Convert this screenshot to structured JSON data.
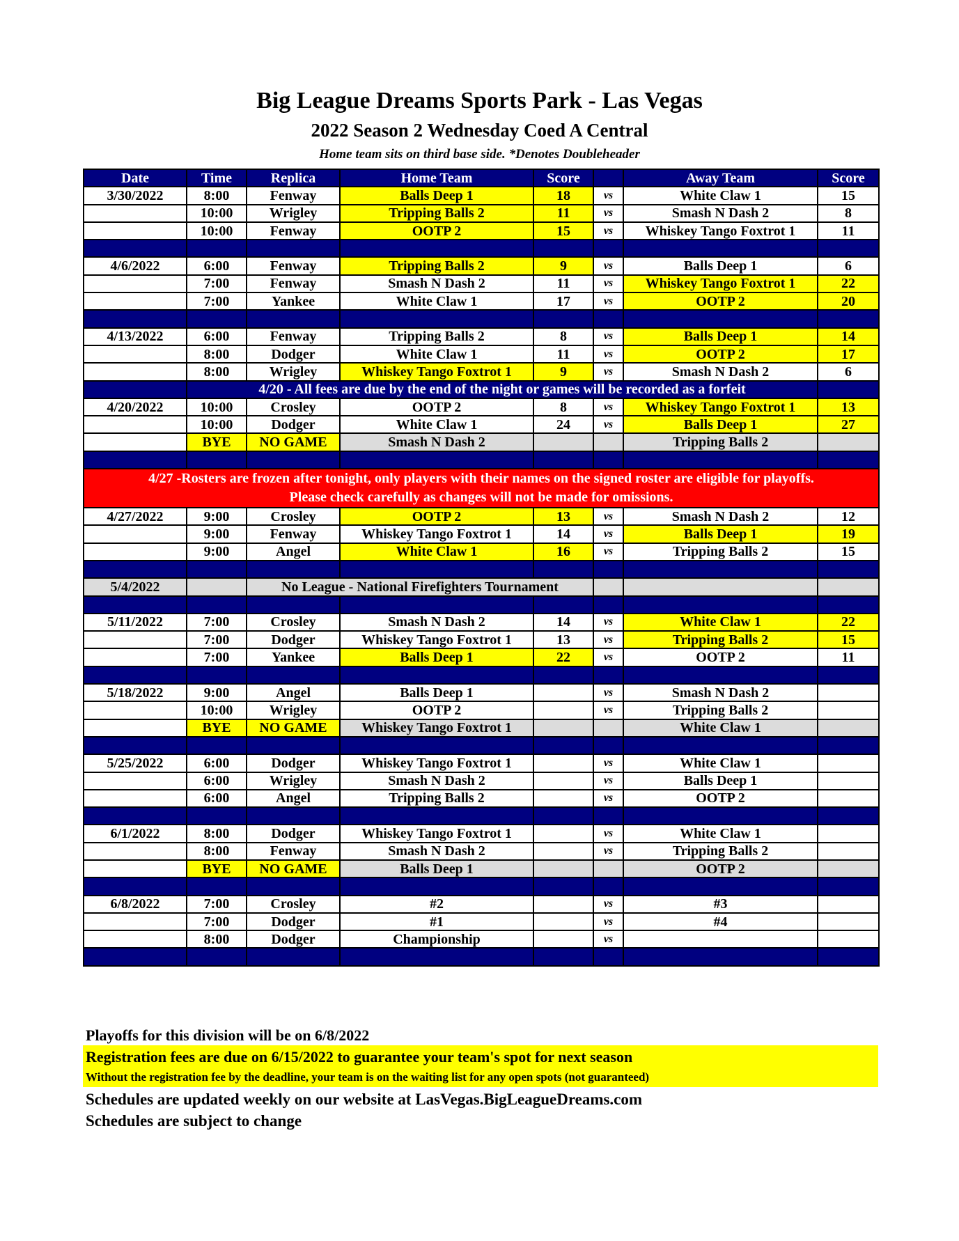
{
  "header": {
    "title": "Big League Dreams Sports Park - Las Vegas",
    "subtitle": "2022 Season 2 Wednesday Coed A Central",
    "note": "Home team sits on third base side.  *Denotes Doubleheader"
  },
  "columns": [
    "Date",
    "Time",
    "Replica",
    "Home Team",
    "Score",
    "",
    "Away Team",
    "Score"
  ],
  "vs_label": "vs",
  "colors": {
    "header": "#000080",
    "winner": "#ffff00",
    "bye": "#dcdcdc",
    "alert": "#ff0000"
  },
  "rows": [
    {
      "type": "game",
      "date": "3/30/2022",
      "time": "8:00",
      "field": "Fenway",
      "home": "Balls Deep 1",
      "hs": "18",
      "away": "White Claw 1",
      "as": "15",
      "win": "home"
    },
    {
      "type": "game",
      "date": "",
      "time": "10:00",
      "field": "Wrigley",
      "home": "Tripping Balls 2",
      "hs": "11",
      "away": "Smash N Dash 2",
      "as": "8",
      "win": "home"
    },
    {
      "type": "game",
      "date": "",
      "time": "10:00",
      "field": "Fenway",
      "home": "OOTP 2",
      "hs": "15",
      "away": "Whiskey Tango Foxtrot 1",
      "as": "11",
      "win": "home"
    },
    {
      "type": "sep"
    },
    {
      "type": "game",
      "date": "4/6/2022",
      "time": "6:00",
      "field": "Fenway",
      "home": "Tripping Balls 2",
      "hs": "9",
      "away": "Balls Deep 1",
      "as": "6",
      "win": "home"
    },
    {
      "type": "game",
      "date": "",
      "time": "7:00",
      "field": "Fenway",
      "home": "Smash N Dash 2",
      "hs": "11",
      "away": "Whiskey Tango Foxtrot 1",
      "as": "22",
      "win": "away"
    },
    {
      "type": "game",
      "date": "",
      "time": "7:00",
      "field": "Yankee",
      "home": "White Claw 1",
      "hs": "17",
      "away": "OOTP 2",
      "as": "20",
      "win": "away"
    },
    {
      "type": "sep"
    },
    {
      "type": "game",
      "date": "4/13/2022",
      "time": "6:00",
      "field": "Fenway",
      "home": "Tripping Balls 2",
      "hs": "8",
      "away": "Balls Deep 1",
      "as": "14",
      "win": "away"
    },
    {
      "type": "game",
      "date": "",
      "time": "8:00",
      "field": "Dodger",
      "home": "White Claw 1",
      "hs": "11",
      "away": "OOTP 2",
      "as": "17",
      "win": "away"
    },
    {
      "type": "game",
      "date": "",
      "time": "8:00",
      "field": "Wrigley",
      "home": "Whiskey Tango Foxtrot 1",
      "hs": "9",
      "away": "Smash N Dash 2",
      "as": "6",
      "win": "home"
    },
    {
      "type": "note",
      "text": "4/20 - All fees are due by the end of the night or games will be recorded as a forfeit"
    },
    {
      "type": "game",
      "date": "4/20/2022",
      "time": "10:00",
      "field": "Crosley",
      "home": "OOTP 2",
      "hs": "8",
      "away": "Whiskey Tango Foxtrot 1",
      "as": "13",
      "win": "away"
    },
    {
      "type": "game",
      "date": "",
      "time": "10:00",
      "field": "Dodger",
      "home": "White Claw 1",
      "hs": "24",
      "away": "Balls Deep 1",
      "as": "27",
      "win": "away"
    },
    {
      "type": "bye",
      "time": "BYE",
      "field": "NO GAME",
      "home": "Smash N Dash 2",
      "away": "Tripping Balls 2"
    },
    {
      "type": "sep"
    },
    {
      "type": "alert",
      "line1": "4/27 -Rosters are frozen after tonight, only players with their names on the signed roster are eligible for playoffs.",
      "line2": "Please check carefully as changes will not be made for omissions."
    },
    {
      "type": "game",
      "date": "4/27/2022",
      "time": "9:00",
      "field": "Crosley",
      "home": "OOTP 2",
      "hs": "13",
      "away": "Smash N Dash 2",
      "as": "12",
      "win": "home"
    },
    {
      "type": "game",
      "date": "",
      "time": "9:00",
      "field": "Fenway",
      "home": "Whiskey Tango Foxtrot 1",
      "hs": "14",
      "away": "Balls Deep 1",
      "as": "19",
      "win": "away"
    },
    {
      "type": "game",
      "date": "",
      "time": "9:00",
      "field": "Angel",
      "home": "White Claw 1",
      "hs": "16",
      "away": "Tripping Balls 2",
      "as": "15",
      "win": "home"
    },
    {
      "type": "sep"
    },
    {
      "type": "noleague",
      "date": "5/4/2022",
      "text": "No League - National Firefighters Tournament"
    },
    {
      "type": "sep"
    },
    {
      "type": "game",
      "date": "5/11/2022",
      "time": "7:00",
      "field": "Crosley",
      "home": "Smash N Dash 2",
      "hs": "14",
      "away": "White Claw 1",
      "as": "22",
      "win": "away"
    },
    {
      "type": "game",
      "date": "",
      "time": "7:00",
      "field": "Dodger",
      "home": "Whiskey Tango Foxtrot 1",
      "hs": "13",
      "away": "Tripping Balls 2",
      "as": "15",
      "win": "away"
    },
    {
      "type": "game",
      "date": "",
      "time": "7:00",
      "field": "Yankee",
      "home": "Balls Deep 1",
      "hs": "22",
      "away": "OOTP 2",
      "as": "11",
      "win": "home"
    },
    {
      "type": "sep"
    },
    {
      "type": "game",
      "date": "5/18/2022",
      "time": "9:00",
      "field": "Angel",
      "home": "Balls Deep 1",
      "hs": "",
      "away": "Smash N Dash 2",
      "as": ""
    },
    {
      "type": "game",
      "date": "",
      "time": "10:00",
      "field": "Wrigley",
      "home": "OOTP 2",
      "hs": "",
      "away": "Tripping Balls 2",
      "as": ""
    },
    {
      "type": "bye",
      "time": "BYE",
      "field": "NO GAME",
      "home": "Whiskey Tango Foxtrot 1",
      "away": "White Claw 1"
    },
    {
      "type": "sep"
    },
    {
      "type": "game",
      "date": "5/25/2022",
      "time": "6:00",
      "field": "Dodger",
      "home": "Whiskey Tango Foxtrot 1",
      "hs": "",
      "away": "White Claw 1",
      "as": ""
    },
    {
      "type": "game",
      "date": "",
      "time": "6:00",
      "field": "Wrigley",
      "home": "Smash N Dash 2",
      "hs": "",
      "away": "Balls Deep 1",
      "as": ""
    },
    {
      "type": "game",
      "date": "",
      "time": "6:00",
      "field": "Angel",
      "home": "Tripping Balls 2",
      "hs": "",
      "away": "OOTP 2",
      "as": ""
    },
    {
      "type": "sep"
    },
    {
      "type": "game",
      "date": "6/1/2022",
      "time": "8:00",
      "field": "Dodger",
      "home": "Whiskey Tango Foxtrot 1",
      "hs": "",
      "away": "White Claw 1",
      "as": ""
    },
    {
      "type": "game",
      "date": "",
      "time": "8:00",
      "field": "Fenway",
      "home": "Smash N Dash 2",
      "hs": "",
      "away": "Tripping Balls 2",
      "as": ""
    },
    {
      "type": "bye",
      "time": "BYE",
      "field": "NO GAME",
      "home": "Balls Deep 1",
      "away": "OOTP 2"
    },
    {
      "type": "sep"
    },
    {
      "type": "game",
      "date": "6/8/2022",
      "time": "7:00",
      "field": "Crosley",
      "home": "#2",
      "hs": "",
      "away": "#3",
      "as": ""
    },
    {
      "type": "game",
      "date": "",
      "time": "7:00",
      "field": "Dodger",
      "home": "#1",
      "hs": "",
      "away": "#4",
      "as": ""
    },
    {
      "type": "game",
      "date": "",
      "time": "8:00",
      "field": "Dodger",
      "home": "Championship",
      "hs": "",
      "away": "",
      "as": ""
    },
    {
      "type": "sep"
    }
  ],
  "footer": {
    "playoffs": "Playoffs for this division will be on 6/8/2022",
    "registration": "Registration fees are due on 6/15/2022 to guarantee your team's spot for next season",
    "waiting": "Without the registration fee by the deadline, your team is on the waiting list for any open spots (not guaranteed)",
    "website": "Schedules are updated weekly on our website at LasVegas.BigLeagueDreams.com",
    "change": "Schedules are subject to change"
  }
}
